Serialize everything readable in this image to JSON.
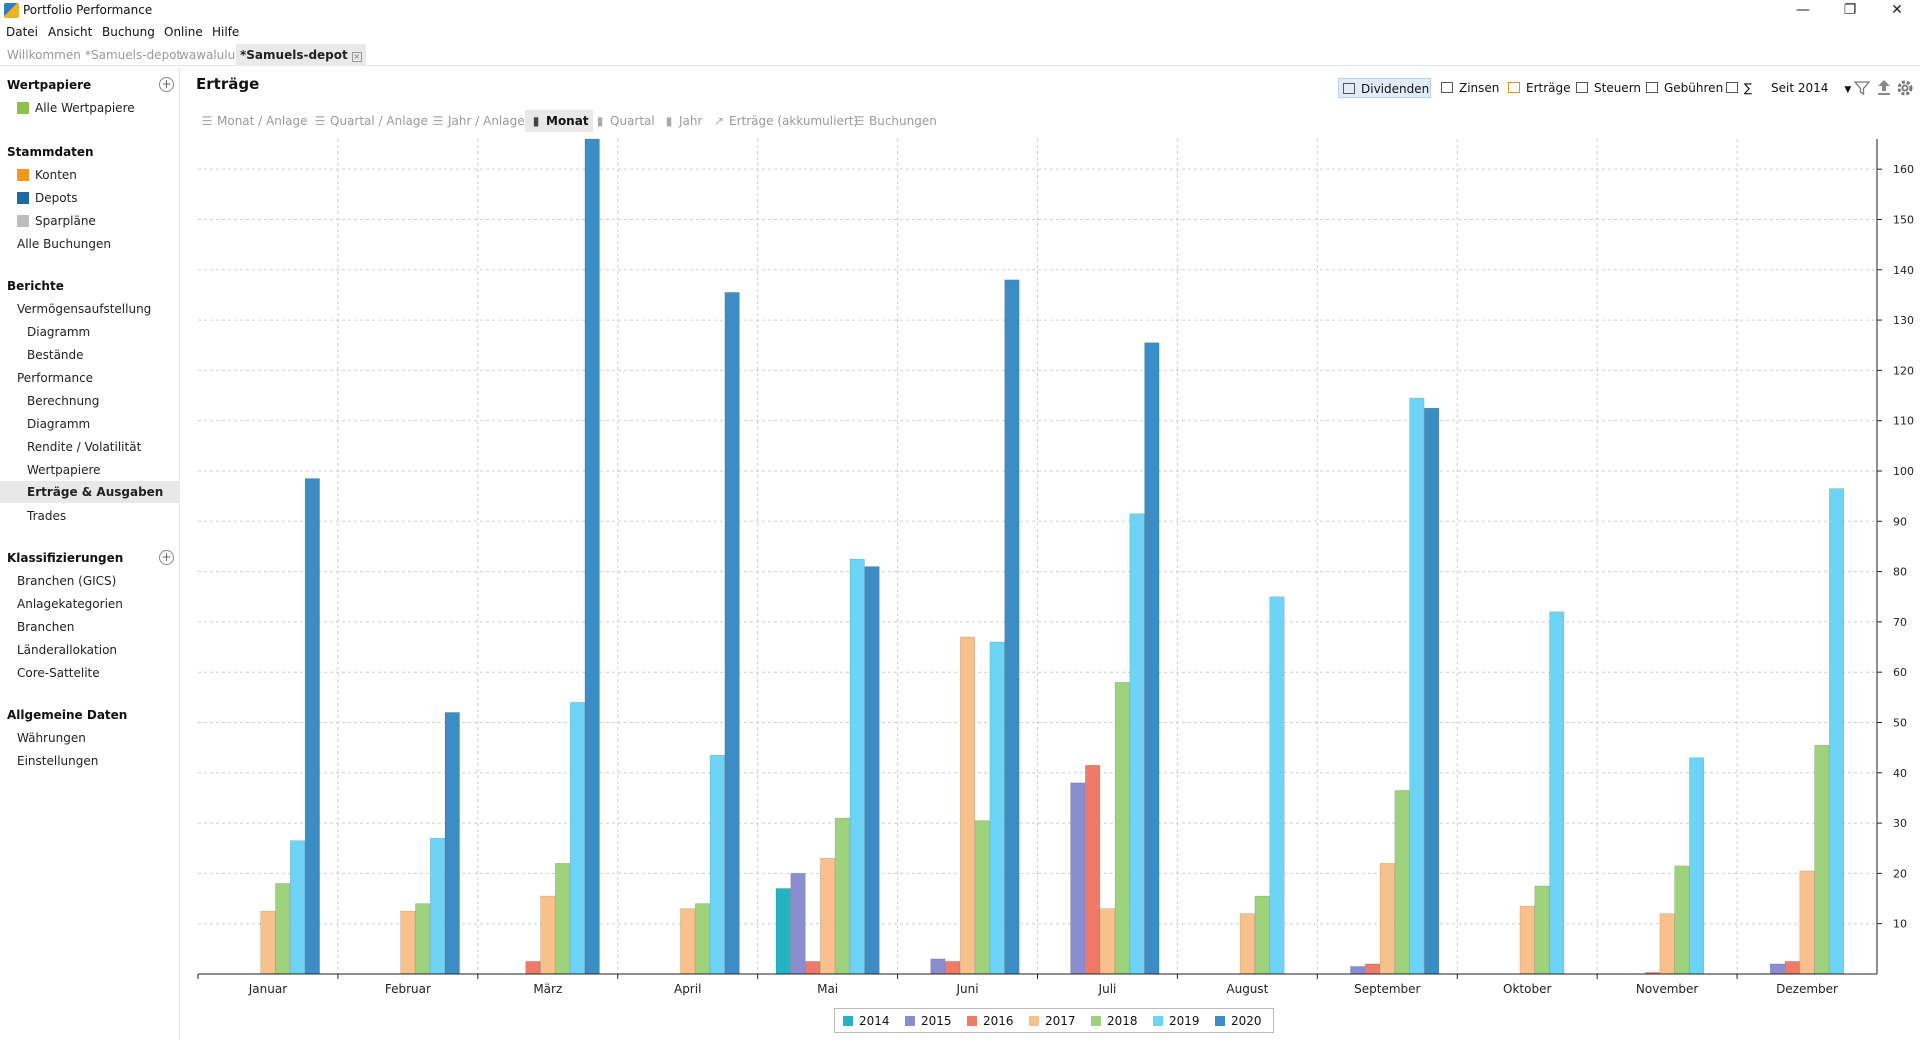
{
  "window": {
    "title": "Portfolio Performance",
    "controls": {
      "minimize": "—",
      "maximize": "❐",
      "close": "✕"
    }
  },
  "menu": [
    "Datei",
    "Ansicht",
    "Buchung",
    "Online",
    "Hilfe"
  ],
  "tabs": [
    {
      "label": "Willkommen",
      "active": false
    },
    {
      "label": "*Samuels-depot",
      "active": false
    },
    {
      "label": "wawalulu",
      "active": false
    },
    {
      "label": "*Samuels-depot",
      "active": true
    }
  ],
  "sidebar": {
    "sections": [
      {
        "title": "Wertpapiere",
        "items": [
          {
            "label": "Alle Wertpapiere",
            "icon": "green-square-icon",
            "color": "#8fc24a"
          }
        ]
      },
      {
        "title": "Stammdaten",
        "items": [
          {
            "label": "Konten",
            "icon": "account-icon",
            "color": "#f39a1e"
          },
          {
            "label": "Depots",
            "icon": "depot-icon",
            "color": "#1c6aa3"
          },
          {
            "label": "Sparpläne",
            "icon": "savings-plan-icon",
            "color": "#bdbdbd"
          },
          {
            "label": "Alle Buchungen"
          }
        ]
      },
      {
        "title": "Berichte",
        "items": [
          {
            "label": "Vermögensaufstellung"
          },
          {
            "label": "Diagramm",
            "sub": true
          },
          {
            "label": "Bestände",
            "sub": true
          },
          {
            "label": "Performance"
          },
          {
            "label": "Berechnung",
            "sub": true
          },
          {
            "label": "Diagramm",
            "sub": true
          },
          {
            "label": "Rendite / Volatilität",
            "sub": true
          },
          {
            "label": "Wertpapiere",
            "sub": true
          },
          {
            "label": "Erträge & Ausgaben",
            "sub": true,
            "selected": true
          },
          {
            "label": "Trades",
            "sub": true
          }
        ]
      },
      {
        "title": "Klassifizierungen",
        "items": [
          {
            "label": "Branchen (GICS)"
          },
          {
            "label": "Anlagekategorien"
          },
          {
            "label": "Branchen"
          },
          {
            "label": "Länderallokation"
          },
          {
            "label": "Core-Sattelite"
          }
        ]
      },
      {
        "title": "Allgemeine Daten",
        "items": [
          {
            "label": "Währungen"
          },
          {
            "label": "Einstellungen"
          }
        ]
      }
    ]
  },
  "page": {
    "title": "Erträge"
  },
  "toggles": {
    "items": [
      {
        "label": "Dividenden",
        "on": true
      },
      {
        "label": "Zinsen",
        "on": false
      },
      {
        "label": "Erträge",
        "on": false
      },
      {
        "label": "Steuern",
        "on": false
      },
      {
        "label": "Gebühren",
        "on": false
      },
      {
        "label": "∑",
        "on": false
      }
    ],
    "period": "Seit 2014"
  },
  "views": [
    {
      "label": "Monat / Anlage",
      "icon": "☰",
      "on": false
    },
    {
      "label": "Quartal / Anlage",
      "icon": "☰",
      "on": false
    },
    {
      "label": "Jahr / Anlage",
      "icon": "☰",
      "on": false
    },
    {
      "label": "Monat",
      "icon": "▮",
      "on": true
    },
    {
      "label": "Quartal",
      "icon": "▮",
      "on": false
    },
    {
      "label": "Jahr",
      "icon": "▮",
      "on": false
    },
    {
      "label": "Erträge (akkumuliert)",
      "icon": "↗",
      "on": false
    },
    {
      "label": "Buchungen",
      "icon": "☰",
      "on": false
    }
  ],
  "chart_data": {
    "type": "bar",
    "categories": [
      "Januar",
      "Februar",
      "März",
      "April",
      "Mai",
      "Juni",
      "Juli",
      "August",
      "September",
      "Oktober",
      "November",
      "Dezember"
    ],
    "ylim": [
      0,
      166
    ],
    "y_ticks": [
      10,
      20,
      30,
      40,
      50,
      60,
      70,
      80,
      90,
      100,
      110,
      120,
      130,
      140,
      150,
      160
    ],
    "y_axis_side": "right",
    "grid": true,
    "legend": "bottom-center",
    "series": [
      {
        "name": "2014",
        "color": "#23b3c2",
        "values": [
          0,
          0,
          0,
          0,
          17,
          0,
          0,
          0,
          0,
          0,
          0,
          0
        ]
      },
      {
        "name": "2015",
        "color": "#8a8dd0",
        "values": [
          0,
          0,
          0,
          0,
          20,
          3,
          38,
          0,
          1.5,
          0,
          0,
          2
        ]
      },
      {
        "name": "2016",
        "color": "#ef7a68",
        "values": [
          0,
          0,
          2.5,
          0,
          2.5,
          2.5,
          41.5,
          0,
          2,
          0,
          0.3,
          2.5
        ]
      },
      {
        "name": "2017",
        "color": "#f8c18b",
        "values": [
          12.5,
          12.5,
          15.5,
          13,
          23,
          67,
          13,
          12,
          22,
          13.5,
          12,
          20.5
        ]
      },
      {
        "name": "2018",
        "color": "#9fd27d",
        "values": [
          18,
          14,
          22,
          14,
          31,
          30.5,
          58,
          15.5,
          36.5,
          17.5,
          21.5,
          45.5
        ]
      },
      {
        "name": "2019",
        "color": "#6dd3f7",
        "values": [
          26.5,
          27,
          54,
          43.5,
          82.5,
          66,
          91.5,
          75,
          114.5,
          72,
          43,
          96.5
        ]
      },
      {
        "name": "2020",
        "color": "#3d8dc5",
        "values": [
          98.5,
          52,
          166,
          135.5,
          81,
          138,
          125.5,
          0,
          112.5,
          0,
          0,
          0
        ]
      }
    ]
  }
}
